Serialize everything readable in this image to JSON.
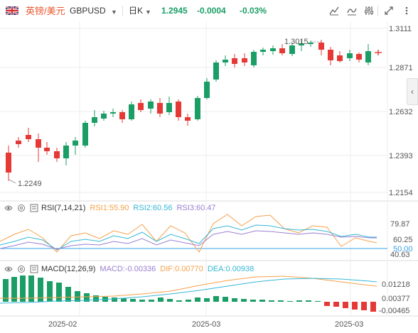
{
  "header": {
    "pair_name": "英镑/美元",
    "symbol": "GBPUSD",
    "period": "日K",
    "price": "1.2945",
    "change": "-0.0004",
    "change_pct": "-0.03%",
    "icons": [
      "chart-type-icon",
      "indicator-icon",
      "settings-icon",
      "fullscreen-icon",
      "more-icon"
    ]
  },
  "main_chart": {
    "price_labels": [
      "1.3111",
      "1.2871",
      "1.2632",
      "1.2393",
      "1.2154"
    ],
    "high_label": "1.3015",
    "low_label": "1.2249",
    "current_marker_color": "#e53935",
    "up_color": "#1b9e66",
    "down_color": "#e53935"
  },
  "rsi": {
    "title": "RSI(7,14,21)",
    "rsi1": "RSI1:55.90",
    "rsi2": "RSI2:60.56",
    "rsi3": "RSI3:60.47",
    "levels": [
      "79.87",
      "60.25",
      "50.00",
      "40.63"
    ],
    "colors": {
      "rsi1": "#f5a04a",
      "rsi2": "#35b7d6",
      "rsi3": "#9a7fd1",
      "level50": "#3aa0e8"
    }
  },
  "macd": {
    "title": "MACD(12,26,9)",
    "macd": "MACD:-0.00336",
    "dif": "DIF:0.00770",
    "dea": "DEA:0.00938",
    "levels": [
      "0.01218",
      "0.00377",
      "-0.00465"
    ],
    "colors": {
      "macd": "#9a7fd1",
      "dif": "#f5a04a",
      "dea": "#35b7d6"
    }
  },
  "x_axis": {
    "labels": [
      "2025-02",
      "2025-03",
      "2025-03"
    ]
  }
}
